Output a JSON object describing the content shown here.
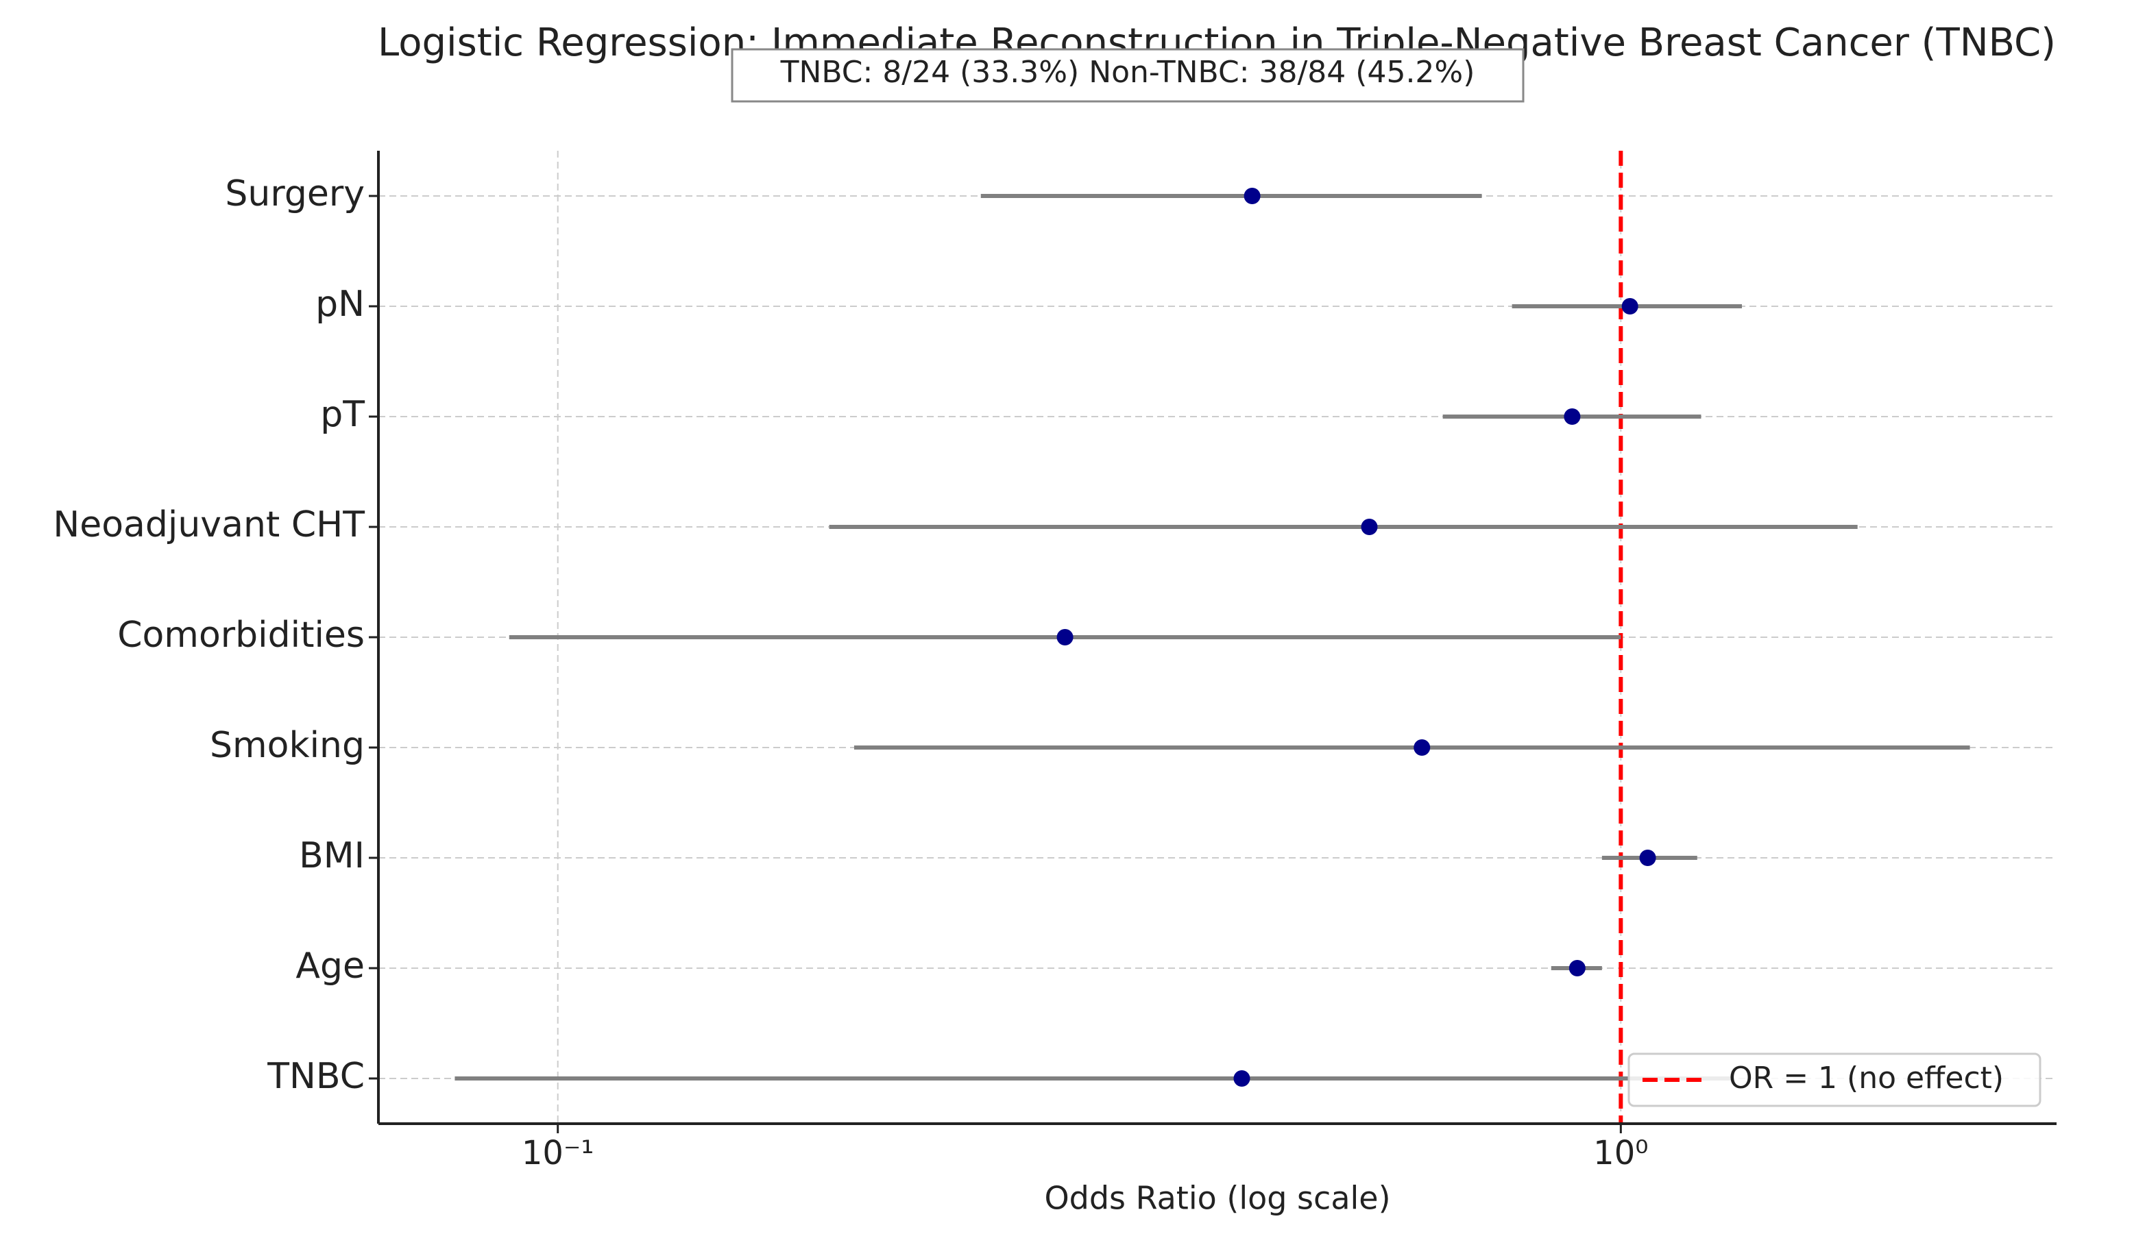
{
  "chart_data": {
    "type": "forest",
    "title": "Logistic Regression: Immediate Reconstruction in Triple-Negative Breast Cancer (TNBC)",
    "annotation": "TNBC: 8/24 (33.3%)   Non-TNBC: 38/84 (45.2%)",
    "x_label": "Odds Ratio (log scale)",
    "categories": [
      "Surgery",
      "pN",
      "pT",
      "Neoadjuvant CHT",
      "Comorbidities",
      "Smoking",
      "BMI",
      "Age",
      "TNBC"
    ],
    "values": [
      0.45,
      1.02,
      0.9,
      0.58,
      0.3,
      0.65,
      1.06,
      0.91,
      0.44
    ],
    "ci_low": [
      0.25,
      0.79,
      0.68,
      0.18,
      0.09,
      0.19,
      0.96,
      0.86,
      0.08
    ],
    "ci_high": [
      0.74,
      1.3,
      1.19,
      1.67,
      1.0,
      2.13,
      1.18,
      0.96,
      1.27
    ],
    "color": "#00008b",
    "ci_color": "#808080",
    "xscale": "log",
    "xlim": [
      0.0678,
      2.57
    ],
    "xticks": [
      {
        "value": 0.1,
        "label": "10⁻¹"
      },
      {
        "value": 1,
        "label": "10⁰"
      }
    ],
    "grid": true,
    "reference_line": {
      "value": 1,
      "label": "OR = 1 (no effect)",
      "color": "#ff0000"
    },
    "legend": "lower right"
  }
}
